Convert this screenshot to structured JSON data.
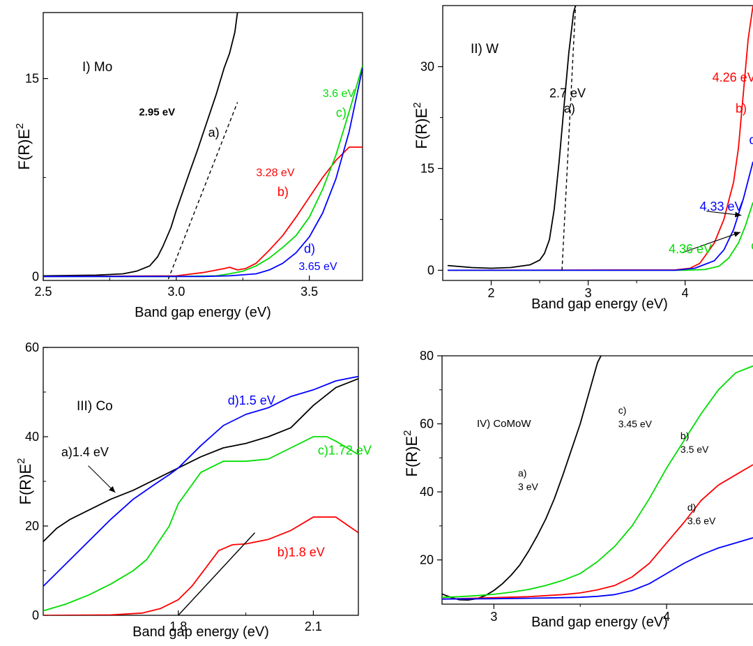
{
  "chart_data": [
    {
      "panel": "I",
      "type": "line",
      "title": "I) Mo",
      "xlabel": "Band gap energy (eV)",
      "ylabel": "F(R)E",
      "ylabel_sup": "2",
      "xlim": [
        2.5,
        3.7
      ],
      "ylim": [
        -0.3,
        20
      ],
      "xticks": [
        2.5,
        3.0,
        3.5
      ],
      "xtick_labels": [
        "2.5",
        "3.0",
        "3.5"
      ],
      "yticks": [
        0,
        15
      ],
      "ytick_labels": [
        "0",
        "15"
      ],
      "grid": false,
      "series": [
        {
          "color": "#000000",
          "x": [
            2.5,
            2.7,
            2.8,
            2.85,
            2.9,
            2.93,
            2.95,
            2.98,
            3.0,
            3.05,
            3.08,
            3.1,
            3.15,
            3.18,
            3.2,
            3.22,
            3.23
          ],
          "y": [
            0.05,
            0.1,
            0.2,
            0.4,
            0.8,
            1.5,
            2.3,
            3.7,
            5.0,
            7.9,
            9.6,
            10.8,
            13.8,
            15.8,
            16.9,
            18.5,
            20
          ]
        },
        {
          "color": "#ff0000",
          "x": [
            2.5,
            3.0,
            3.1,
            3.18,
            3.2,
            3.23,
            3.26,
            3.3,
            3.35,
            3.4,
            3.45,
            3.5,
            3.55,
            3.6,
            3.65,
            3.7
          ],
          "y": [
            0.0,
            0.05,
            0.3,
            0.6,
            0.7,
            0.5,
            0.6,
            1.0,
            2.0,
            3.1,
            4.5,
            6.0,
            7.5,
            8.8,
            9.8,
            9.8
          ]
        },
        {
          "color": "#00dd00",
          "x": [
            2.5,
            3.0,
            3.15,
            3.2,
            3.25,
            3.3,
            3.35,
            3.4,
            3.45,
            3.5,
            3.55,
            3.6,
            3.65,
            3.7
          ],
          "y": [
            0.0,
            0.0,
            0.05,
            0.2,
            0.4,
            0.8,
            1.4,
            2.2,
            3.1,
            4.5,
            6.6,
            9.2,
            12.5,
            16.0
          ]
        },
        {
          "color": "#0000ff",
          "x": [
            2.5,
            3.1,
            3.2,
            3.3,
            3.35,
            3.4,
            3.45,
            3.5,
            3.55,
            3.6,
            3.65,
            3.7
          ],
          "y": [
            0.0,
            0.0,
            0.05,
            0.2,
            0.5,
            1.0,
            1.8,
            3.0,
            4.8,
            7.4,
            11.0,
            15.8
          ]
        }
      ],
      "fits": [
        {
          "x": [
            2.97,
            3.23
          ],
          "y": [
            -0.2,
            13.2
          ],
          "dash": true
        }
      ],
      "annotations": [
        {
          "text": "2.95 eV",
          "color": "#000000",
          "style": "serif-bold",
          "x": 2.86,
          "y": 12.2
        },
        {
          "text": "a)",
          "color": "#000000",
          "x": 3.12,
          "y": 10.6
        },
        {
          "text": "3.6 eV",
          "color": "#00dd00",
          "style": "serif",
          "x": 3.55,
          "y": 13.6
        },
        {
          "text": "c)",
          "color": "#00dd00",
          "x": 3.6,
          "y": 12.1
        },
        {
          "text": "3.28 eV",
          "color": "#ff0000",
          "style": "serif",
          "x": 3.3,
          "y": 7.6
        },
        {
          "text": "b)",
          "color": "#ff0000",
          "x": 3.38,
          "y": 6.1
        },
        {
          "text": "d)",
          "color": "#0000ff",
          "x": 3.48,
          "y": 1.8
        },
        {
          "text": "3.65 eV",
          "color": "#0000ff",
          "style": "serif",
          "x": 3.46,
          "y": 0.5
        }
      ]
    },
    {
      "panel": "II",
      "type": "line",
      "title": "II) W",
      "xlabel": "Band gap energy (eV)",
      "ylabel": "F(R)E",
      "ylabel_sup": "2",
      "xlim": [
        1.5,
        4.7
      ],
      "ylim": [
        -1.5,
        39
      ],
      "xticks": [
        2,
        3,
        4
      ],
      "xtick_labels": [
        "2",
        "3",
        "4"
      ],
      "yticks": [
        0,
        15,
        30
      ],
      "ytick_labels": [
        "0",
        "15",
        "30"
      ],
      "grid": false,
      "series": [
        {
          "color": "#000000",
          "x": [
            1.55,
            1.8,
            2.0,
            2.2,
            2.4,
            2.5,
            2.55,
            2.6,
            2.65,
            2.7,
            2.75,
            2.8,
            2.85,
            2.87
          ],
          "y": [
            0.7,
            0.4,
            0.3,
            0.4,
            0.8,
            1.5,
            2.5,
            4.5,
            9.0,
            16.0,
            24.0,
            32.0,
            38.0,
            39.0
          ]
        },
        {
          "color": "#ff0000",
          "x": [
            1.55,
            3.9,
            4.05,
            4.15,
            4.2,
            4.3,
            4.4,
            4.5,
            4.55,
            4.6,
            4.65,
            4.7
          ],
          "y": [
            0.0,
            0.05,
            0.3,
            1.0,
            2.0,
            4.0,
            7.5,
            13.0,
            18.0,
            26.0,
            34.0,
            39.0
          ]
        },
        {
          "color": "#00dd00",
          "x": [
            1.55,
            4.0,
            4.2,
            4.35,
            4.45,
            4.55,
            4.62,
            4.7
          ],
          "y": [
            0.0,
            0.0,
            0.1,
            0.6,
            1.8,
            4.0,
            6.5,
            10.0
          ]
        },
        {
          "color": "#0000ff",
          "x": [
            1.55,
            3.9,
            4.1,
            4.3,
            4.4,
            4.5,
            4.6,
            4.7
          ],
          "y": [
            0.0,
            0.0,
            0.3,
            1.4,
            3.0,
            6.0,
            10.5,
            16.0
          ]
        }
      ],
      "fits": [
        {
          "x": [
            2.73,
            2.87
          ],
          "y": [
            0,
            39
          ],
          "dash": true
        }
      ],
      "annotations": [
        {
          "text": "2.7 eV",
          "color": "#000000",
          "x": 2.6,
          "y": 25.5
        },
        {
          "text": "a)",
          "color": "#000000",
          "x": 2.75,
          "y": 23.2
        },
        {
          "text": "4.26 eV",
          "color": "#ff0000",
          "x": 4.28,
          "y": 27.8
        },
        {
          "text": "b)",
          "color": "#ff0000",
          "x": 4.52,
          "y": 23.2
        },
        {
          "text": "d)",
          "color": "#0000ff",
          "x": 4.66,
          "y": 18.6
        },
        {
          "text": "4.33 eV",
          "color": "#0000ff",
          "x": 4.15,
          "y": 8.8
        },
        {
          "text": "4.36 eV",
          "color": "#00dd00",
          "x": 3.83,
          "y": 2.5
        },
        {
          "text": "c",
          "color": "#00dd00",
          "x": 4.68,
          "y": 3.0
        }
      ],
      "arrows": [
        {
          "x": [
            4.22,
            4.58
          ],
          "y": [
            8.7,
            8.1
          ],
          "color": "#000000"
        },
        {
          "x": [
            3.97,
            4.57
          ],
          "y": [
            2.6,
            5.6
          ],
          "color": "#000000"
        }
      ]
    },
    {
      "panel": "III",
      "type": "line",
      "title": "III) Co",
      "xlabel": "Band gap energy (eV)",
      "ylabel": "F(R)E",
      "ylabel_sup": "2",
      "xlim": [
        1.5,
        2.2
      ],
      "ylim": [
        0,
        60
      ],
      "xticks": [
        1.8,
        2.1
      ],
      "xtick_labels": [
        "1.8",
        "2.1"
      ],
      "yticks": [
        0,
        20,
        40,
        60
      ],
      "ytick_labels": [
        "0",
        "20",
        "40",
        "60"
      ],
      "grid": false,
      "series": [
        {
          "color": "#000000",
          "x": [
            1.5,
            1.53,
            1.56,
            1.6,
            1.65,
            1.7,
            1.75,
            1.78,
            1.8,
            1.85,
            1.9,
            1.95,
            2.0,
            2.05,
            2.1,
            2.15,
            2.2
          ],
          "y": [
            16.5,
            19.5,
            21.5,
            23.5,
            26.0,
            28.0,
            30.5,
            32.0,
            33.0,
            35.5,
            37.5,
            38.5,
            40.0,
            42.0,
            47.0,
            51.0,
            53.0
          ]
        },
        {
          "color": "#0000ff",
          "x": [
            1.5,
            1.55,
            1.6,
            1.65,
            1.7,
            1.75,
            1.78,
            1.8,
            1.85,
            1.9,
            1.95,
            2.0,
            2.05,
            2.1,
            2.15,
            2.2
          ],
          "y": [
            6.5,
            11.5,
            16.5,
            21.5,
            26.0,
            29.5,
            31.5,
            33.0,
            38.0,
            42.5,
            45.0,
            46.5,
            49.0,
            50.5,
            52.5,
            53.5
          ]
        },
        {
          "color": "#00dd00",
          "x": [
            1.5,
            1.55,
            1.6,
            1.65,
            1.7,
            1.73,
            1.75,
            1.78,
            1.8,
            1.85,
            1.9,
            1.95,
            2.0,
            2.05,
            2.1,
            2.13,
            2.15,
            2.2
          ],
          "y": [
            1.0,
            2.5,
            4.5,
            7.0,
            10.0,
            12.5,
            15.5,
            20.0,
            25.0,
            32.0,
            34.5,
            34.5,
            35.0,
            37.5,
            40.0,
            40.0,
            39.0,
            36.0
          ]
        },
        {
          "color": "#ff0000",
          "x": [
            1.5,
            1.65,
            1.72,
            1.76,
            1.8,
            1.83,
            1.86,
            1.89,
            1.92,
            1.95,
            2.0,
            2.05,
            2.1,
            2.15,
            2.2
          ],
          "y": [
            0.0,
            0.1,
            0.5,
            1.5,
            3.5,
            6.5,
            10.5,
            14.5,
            15.8,
            16.0,
            17.0,
            19.0,
            22.0,
            22.0,
            18.5
          ]
        }
      ],
      "fits": [
        {
          "x": [
            1.8,
            1.97
          ],
          "y": [
            0,
            18.5
          ],
          "dash": false
        }
      ],
      "annotations": [
        {
          "text": "d)1.5 eV",
          "color": "#0000ff",
          "x": 1.91,
          "y": 47.2
        },
        {
          "text": "a)1.4 eV",
          "color": "#000000",
          "x": 1.54,
          "y": 35.6
        },
        {
          "text": "c)1.72 eV",
          "color": "#00dd00",
          "x": 2.11,
          "y": 36.0
        },
        {
          "text": "b)1.8 eV",
          "color": "#ff0000",
          "x": 2.02,
          "y": 13.2
        }
      ],
      "arrows": [
        {
          "x": [
            1.6,
            1.66
          ],
          "y": [
            33.5,
            27.5
          ],
          "color": "#000000"
        }
      ]
    },
    {
      "panel": "IV",
      "type": "line",
      "title": "IV) CoMoW",
      "xlabel": "Band gap energy (eV)",
      "ylabel": "F(R)E",
      "ylabel_sup": "2",
      "xlim": [
        2.7,
        4.5
      ],
      "ylim": [
        7,
        80
      ],
      "xticks": [
        3,
        4
      ],
      "xtick_labels": [
        "3",
        "4"
      ],
      "yticks": [
        20,
        40,
        60,
        80
      ],
      "ytick_labels": [
        "20",
        "40",
        "60",
        "80"
      ],
      "grid": false,
      "series": [
        {
          "color": "#000000",
          "x": [
            2.7,
            2.75,
            2.8,
            2.85,
            2.9,
            2.95,
            3.0,
            3.05,
            3.1,
            3.15,
            3.2,
            3.25,
            3.3,
            3.35,
            3.4,
            3.45,
            3.5,
            3.55,
            3.6,
            3.62
          ],
          "y": [
            10.0,
            9.0,
            8.3,
            8.2,
            8.6,
            9.5,
            11.0,
            13.0,
            15.5,
            18.5,
            22.5,
            27.0,
            32.0,
            38.0,
            45.0,
            52.5,
            60.0,
            69.0,
            78.0,
            80.0
          ]
        },
        {
          "color": "#00dd00",
          "x": [
            2.7,
            2.8,
            2.9,
            3.0,
            3.1,
            3.2,
            3.3,
            3.4,
            3.5,
            3.6,
            3.7,
            3.8,
            3.9,
            4.0,
            4.1,
            4.2,
            4.3,
            4.4,
            4.5
          ],
          "y": [
            9.0,
            9.2,
            9.5,
            9.9,
            10.5,
            11.3,
            12.5,
            14.0,
            16.0,
            19.5,
            24.0,
            30.0,
            38.0,
            47.0,
            55.0,
            63.0,
            70.0,
            75.0,
            77.0
          ]
        },
        {
          "color": "#ff0000",
          "x": [
            2.7,
            2.8,
            3.0,
            3.2,
            3.4,
            3.5,
            3.6,
            3.7,
            3.8,
            3.9,
            4.0,
            4.1,
            4.2,
            4.3,
            4.4,
            4.5
          ],
          "y": [
            8.5,
            8.6,
            8.9,
            9.2,
            9.8,
            10.3,
            11.2,
            12.5,
            15.0,
            19.0,
            25.0,
            31.0,
            37.5,
            42.0,
            45.0,
            48.0
          ]
        },
        {
          "color": "#0000ff",
          "x": [
            2.7,
            3.0,
            3.3,
            3.5,
            3.6,
            3.7,
            3.8,
            3.9,
            4.0,
            4.1,
            4.2,
            4.3,
            4.4,
            4.5
          ],
          "y": [
            8.5,
            8.6,
            8.8,
            9.0,
            9.3,
            9.8,
            11.0,
            13.0,
            16.0,
            19.0,
            21.5,
            23.5,
            25.0,
            26.5
          ]
        }
      ],
      "fits": [],
      "annotations": [
        {
          "text": "a)",
          "color": "#000000",
          "x": 3.14,
          "y": 44.5,
          "small": true
        },
        {
          "text": "3 eV",
          "color": "#000000",
          "x": 3.14,
          "y": 40.5,
          "small": true
        },
        {
          "text": "c)",
          "color": "#000000",
          "x": 3.72,
          "y": 63.0,
          "small": true
        },
        {
          "text": "3.45 eV",
          "color": "#000000",
          "x": 3.72,
          "y": 59.0,
          "small": true
        },
        {
          "text": "b)",
          "color": "#000000",
          "x": 4.08,
          "y": 55.5,
          "small": true
        },
        {
          "text": "3.5 eV",
          "color": "#000000",
          "x": 4.08,
          "y": 51.5,
          "small": true
        },
        {
          "text": "d)",
          "color": "#000000",
          "x": 4.12,
          "y": 34.5,
          "small": true
        },
        {
          "text": "3.6 eV",
          "color": "#000000",
          "x": 4.12,
          "y": 30.5,
          "small": true
        }
      ]
    }
  ]
}
